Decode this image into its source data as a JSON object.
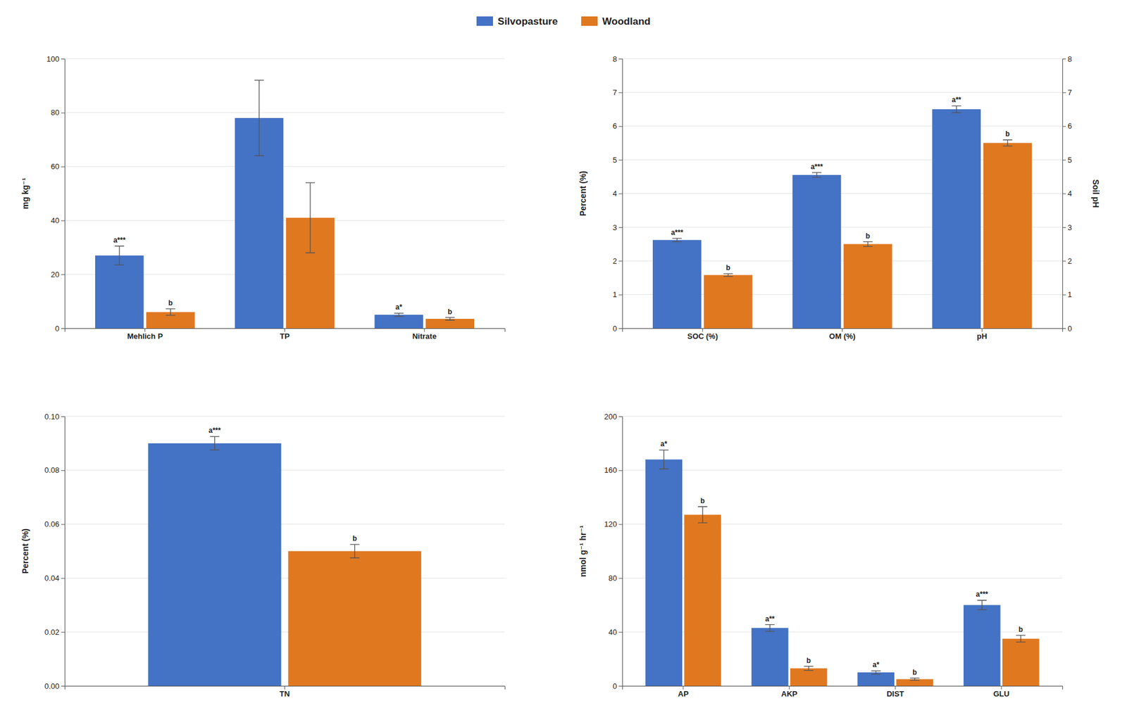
{
  "chart_data": [
    {
      "type": "bar",
      "categories": [
        "Mehlich P",
        "TP",
        "Nitrate"
      ],
      "series": [
        {
          "name": "Silvopasture",
          "color": "#4472C4",
          "values": [
            27.0,
            78.0,
            5.0
          ],
          "errors": [
            3.5,
            14.0,
            0.6
          ],
          "annotations": [
            "a***",
            null,
            "a*"
          ]
        },
        {
          "name": "Woodland",
          "color": "#E07820",
          "values": [
            6.0,
            41.0,
            3.5
          ],
          "errors": [
            1.2,
            13.0,
            0.5
          ],
          "annotations": [
            "b",
            null,
            "b"
          ]
        }
      ],
      "ylabel": "mg kg⁻¹",
      "ylim": [
        0,
        100
      ],
      "yticks": [
        0,
        20,
        40,
        60,
        80,
        100
      ],
      "grid": true,
      "legend": "top"
    },
    {
      "type": "bar",
      "categories": [
        "SOC (%)",
        "OM (%)",
        "pH"
      ],
      "series": [
        {
          "color": "#4472C4",
          "values": [
            2.62,
            4.55,
            6.5
          ],
          "errors": [
            0.05,
            0.07,
            0.1
          ],
          "annotations": [
            "a***",
            "a***",
            "a**"
          ]
        },
        {
          "color": "#E07820",
          "values": [
            1.58,
            2.5,
            5.5
          ],
          "errors": [
            0.04,
            0.07,
            0.09
          ],
          "annotations": [
            "b",
            "b",
            "b"
          ]
        }
      ],
      "ylabel": "Percent (%)",
      "ylim": [
        0,
        8
      ],
      "yticks": [
        0,
        1,
        2,
        3,
        4,
        5,
        6,
        7,
        8
      ],
      "y2label": "Soil pH",
      "y2lim": [
        0,
        8
      ],
      "y2ticks": [
        0,
        1,
        2,
        3,
        4,
        5,
        6,
        7,
        8
      ],
      "grid": true
    },
    {
      "type": "bar",
      "categories": [
        "TN"
      ],
      "series": [
        {
          "color": "#4472C4",
          "values": [
            0.09
          ],
          "errors": [
            0.0025
          ],
          "annotations": [
            "a***"
          ]
        },
        {
          "color": "#E07820",
          "values": [
            0.05
          ],
          "errors": [
            0.0025
          ],
          "annotations": [
            "b"
          ]
        }
      ],
      "ylabel": "Percent (%)",
      "ylim": [
        0,
        0.1
      ],
      "yticks": [
        {
          "value": 0,
          "label": "0.00"
        },
        {
          "value": 0.02,
          "label": "0.02"
        },
        {
          "value": 0.04,
          "label": "0.04"
        },
        {
          "value": 0.06,
          "label": "0.06"
        },
        {
          "value": 0.08,
          "label": "0.08"
        },
        {
          "value": 0.1,
          "label": "0.10"
        }
      ],
      "grid": true
    },
    {
      "type": "bar",
      "categories": [
        "AP",
        "AKP",
        "DIST",
        "GLU"
      ],
      "series": [
        {
          "color": "#4472C4",
          "values": [
            168.0,
            43.0,
            10.0,
            60.0
          ],
          "errors": [
            7.0,
            2.5,
            1.2,
            3.5
          ],
          "annotations": [
            "a*",
            "a**",
            "a*",
            "a***"
          ]
        },
        {
          "color": "#E07820",
          "values": [
            127.0,
            13.0,
            5.0,
            35.0
          ],
          "errors": [
            6.0,
            1.5,
            0.8,
            2.5
          ],
          "annotations": [
            "b",
            "b",
            "b",
            "b"
          ]
        }
      ],
      "ylabel": "nmol g⁻¹ hr⁻¹",
      "ylim": [
        0,
        200
      ],
      "yticks": [
        0,
        40,
        80,
        120,
        160,
        200
      ],
      "grid": true
    }
  ]
}
